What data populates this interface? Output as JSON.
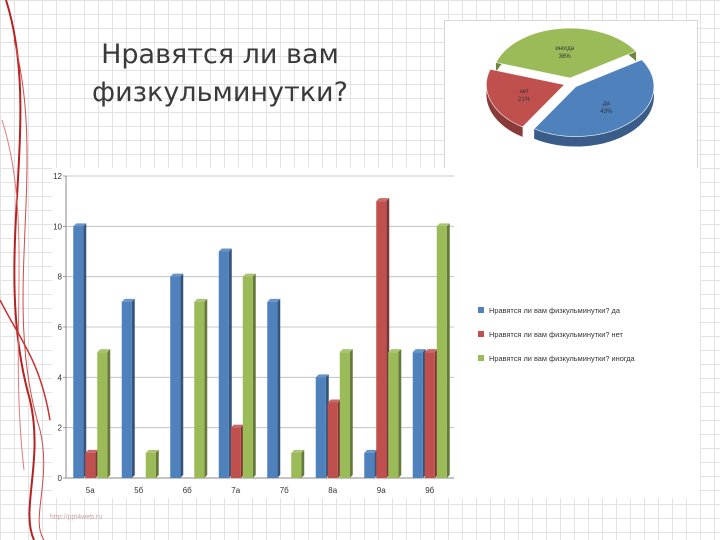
{
  "slide": {
    "title_line1": "Нравятся ли вам",
    "title_line2": "физкульминутки?",
    "footer_url": "http://ppt4web.ru"
  },
  "colors": {
    "da": "#4f81bd",
    "net": "#c0504d",
    "inogda": "#9bbb59"
  },
  "chart_data": [
    {
      "type": "pie",
      "slices": [
        {
          "label": "иногда",
          "value": 36,
          "value_label": "36%"
        },
        {
          "label": "да",
          "value": 43,
          "value_label": "43%"
        },
        {
          "label": "нет",
          "value": 21,
          "value_label": "21%"
        }
      ]
    },
    {
      "type": "bar",
      "categories": [
        "5а",
        "5б",
        "6б",
        "7а",
        "7б",
        "8а",
        "9а",
        "9б"
      ],
      "series": [
        {
          "name": "Нравятся ли вам физкульминутки? да",
          "values": [
            10,
            7,
            8,
            9,
            7,
            4,
            1,
            5
          ]
        },
        {
          "name": "Нравятся ли вам физкульминутки? нет",
          "values": [
            1,
            0,
            0,
            2,
            0,
            3,
            11,
            5
          ]
        },
        {
          "name": "Нравятся ли вам физкульминутки? иногда",
          "values": [
            5,
            1,
            7,
            8,
            1,
            5,
            5,
            10
          ]
        }
      ],
      "yticks": [
        0,
        2,
        4,
        6,
        8,
        10,
        12
      ],
      "ylim": [
        0,
        12
      ],
      "grid": true,
      "legend_position": "right"
    }
  ]
}
